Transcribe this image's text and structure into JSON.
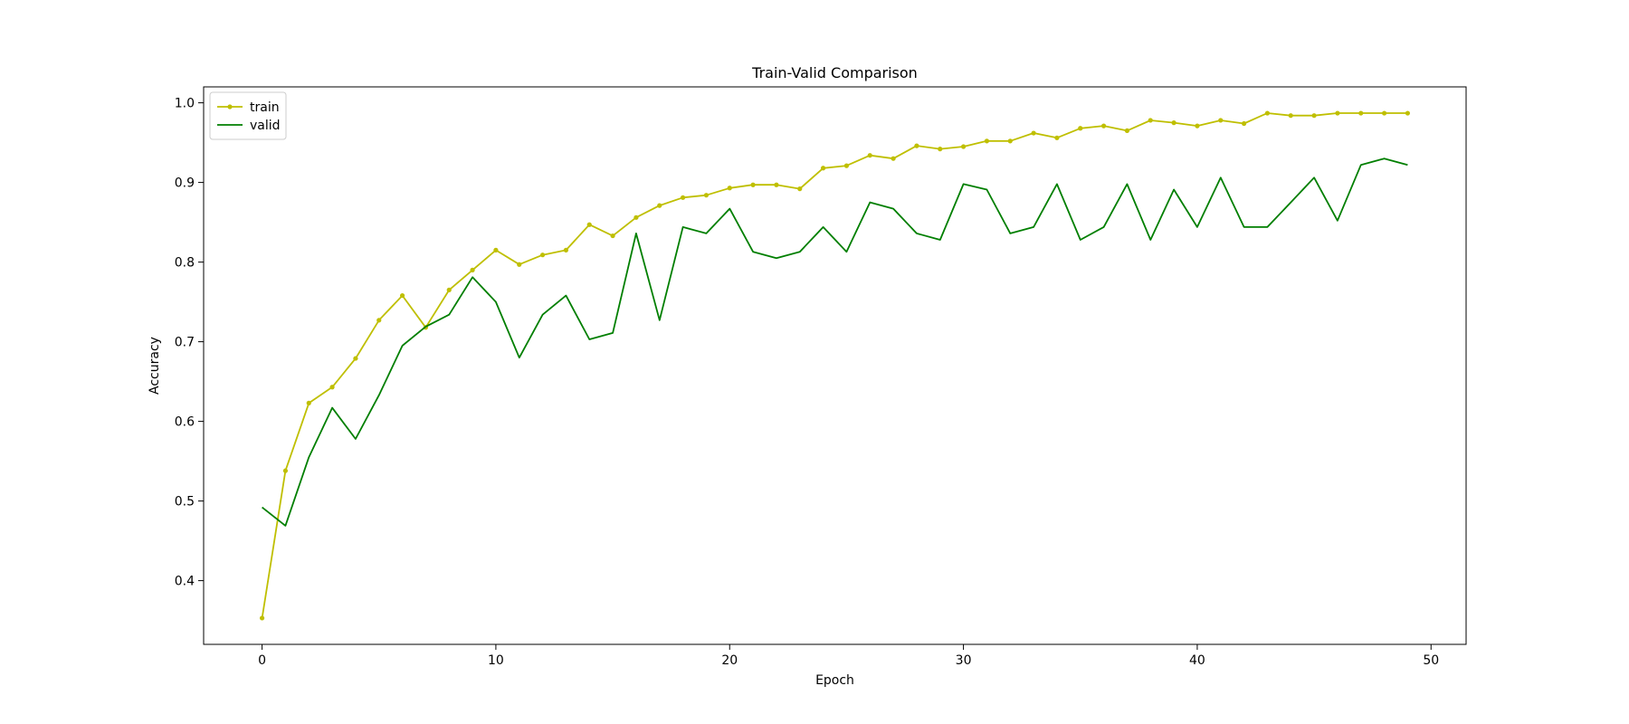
{
  "chart_data": {
    "type": "line",
    "title": "Train-Valid Comparison",
    "xlabel": "Epoch",
    "ylabel": "Accuracy",
    "xlim": [
      -2.5,
      51.5
    ],
    "ylim": [
      0.32,
      1.02
    ],
    "xticks": [
      0,
      10,
      20,
      30,
      40,
      50
    ],
    "yticks": [
      0.4,
      0.5,
      0.6,
      0.7,
      0.8,
      0.9,
      1.0
    ],
    "grid": false,
    "legend_position": "top-left",
    "x": [
      0,
      1,
      2,
      3,
      4,
      5,
      6,
      7,
      8,
      9,
      10,
      11,
      12,
      13,
      14,
      15,
      16,
      17,
      18,
      19,
      20,
      21,
      22,
      23,
      24,
      25,
      26,
      27,
      28,
      29,
      30,
      31,
      32,
      33,
      34,
      35,
      36,
      37,
      38,
      39,
      40,
      41,
      42,
      43,
      44,
      45,
      46,
      47,
      48,
      49
    ],
    "series": [
      {
        "name": "train",
        "color": "#bfbf00",
        "marker": "dot",
        "values": [
          0.353,
          0.538,
          0.623,
          0.643,
          0.679,
          0.727,
          0.758,
          0.718,
          0.765,
          0.79,
          0.815,
          0.797,
          0.809,
          0.815,
          0.847,
          0.833,
          0.856,
          0.871,
          0.881,
          0.884,
          0.893,
          0.897,
          0.897,
          0.892,
          0.918,
          0.921,
          0.934,
          0.93,
          0.946,
          0.942,
          0.945,
          0.952,
          0.952,
          0.962,
          0.956,
          0.968,
          0.971,
          0.965,
          0.978,
          0.975,
          0.971,
          0.978,
          0.974,
          0.987,
          0.984,
          0.984,
          0.987,
          0.987,
          0.987,
          0.987
        ]
      },
      {
        "name": "valid",
        "color": "#007f00",
        "marker": "none",
        "values": [
          0.492,
          0.469,
          0.555,
          0.617,
          0.578,
          0.633,
          0.695,
          0.719,
          0.734,
          0.781,
          0.75,
          0.68,
          0.734,
          0.758,
          0.703,
          0.711,
          0.836,
          0.727,
          0.844,
          0.836,
          0.867,
          0.813,
          0.805,
          0.813,
          0.844,
          0.813,
          0.875,
          0.867,
          0.836,
          0.828,
          0.898,
          0.891,
          0.836,
          0.844,
          0.898,
          0.828,
          0.844,
          0.898,
          0.828,
          0.891,
          0.844,
          0.906,
          0.844,
          0.844,
          0.875,
          0.906,
          0.852,
          0.922,
          0.93,
          0.922
        ]
      }
    ]
  }
}
